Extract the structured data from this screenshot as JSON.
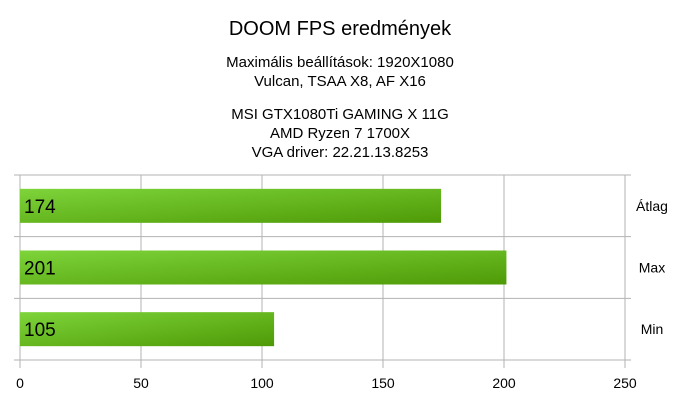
{
  "chart_data": {
    "type": "bar",
    "orientation": "horizontal",
    "title": "DOOM FPS eredmények",
    "subtitle_lines": [
      "Maximális beállítások: 1920X1080",
      "Vulcan, TSAA X8, AF X16",
      "",
      "MSI GTX1080Ti GAMING X 11G",
      "AMD Ryzen 7 1700X",
      "VGA driver: 22.21.13.8253"
    ],
    "categories": [
      "Átlag",
      "Max",
      "Min"
    ],
    "values": [
      174,
      201,
      105
    ],
    "data_labels": [
      "174",
      "201",
      "105"
    ],
    "xlim": [
      0,
      250
    ],
    "x_ticks": [
      "0",
      "50",
      "100",
      "150",
      "200",
      "250"
    ],
    "category_axis_position": "right",
    "grid": true,
    "bar_gradient": [
      "#7ed43a",
      "#4e9a06"
    ]
  }
}
